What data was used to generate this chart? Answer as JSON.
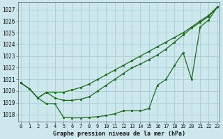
{
  "title": "Graphe pression niveau de la mer (hPa)",
  "bg_color": "#cce8ec",
  "grid_color": "#aad0d8",
  "line_color": "#1a6b1a",
  "x_ticks": [
    0,
    1,
    2,
    3,
    4,
    5,
    6,
    7,
    8,
    9,
    10,
    11,
    12,
    13,
    14,
    15,
    16,
    17,
    18,
    19,
    20,
    21,
    22,
    23
  ],
  "y_ticks": [
    1018,
    1019,
    1020,
    1021,
    1022,
    1023,
    1024,
    1025,
    1026,
    1027
  ],
  "ylim": [
    1017.4,
    1027.6
  ],
  "xlim": [
    -0.3,
    23.3
  ],
  "line_a": [
    1020.7,
    1020.2,
    1019.4,
    1019.9,
    1019.9,
    1019.9,
    1020.1,
    1020.3,
    1020.6,
    1021.0,
    1021.4,
    1021.8,
    1022.2,
    1022.6,
    1023.0,
    1023.4,
    1023.8,
    1024.2,
    1024.6,
    1025.0,
    1025.5,
    1026.0,
    1026.5,
    1027.2
  ],
  "line_b": [
    1020.7,
    1020.2,
    1019.4,
    1019.9,
    1019.4,
    1019.2,
    1019.2,
    1019.3,
    1019.5,
    1020.0,
    1020.5,
    1021.0,
    1021.5,
    1022.0,
    1022.3,
    1022.7,
    1023.1,
    1023.6,
    1024.2,
    1024.8,
    1025.4,
    1025.9,
    1026.4,
    1027.2
  ],
  "line_c": [
    1020.7,
    1020.2,
    1019.4,
    1018.9,
    1018.9,
    1017.75,
    1017.7,
    1017.7,
    1017.75,
    1017.8,
    1017.9,
    1018.05,
    1018.3,
    1018.3,
    1018.3,
    1018.5,
    1020.5,
    1021.0,
    1022.2,
    1023.3,
    1021.0,
    1025.5,
    1026.1,
    1027.2
  ]
}
